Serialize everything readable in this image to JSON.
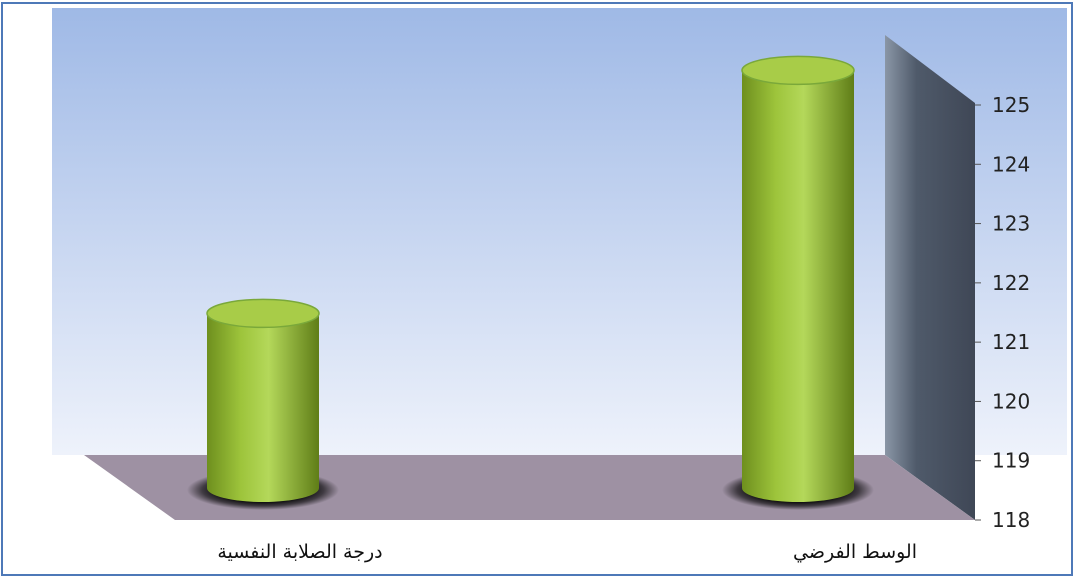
{
  "chart_data": {
    "type": "bar",
    "style": "3d-cylinder",
    "categories": [
      "الوسط الفرضي",
      "درجة الصلابة النفسية"
    ],
    "values": [
      125.5,
      121.4
    ],
    "ylim": [
      118,
      125
    ],
    "yticks": [
      118,
      119,
      120,
      121,
      122,
      123,
      124,
      125
    ],
    "y_axis_side": "right",
    "category_direction": "right-to-left",
    "grid": false,
    "legend": "none",
    "colors": {
      "bar": "#9dc43b",
      "bar_top": "#a8cc48",
      "back_wall_top": "#9fb9e6",
      "back_wall_bottom": "#eef2fb",
      "side_wall": "#4f5a6a",
      "floor": "#9e91a3",
      "frame": "#4e79b8"
    }
  }
}
